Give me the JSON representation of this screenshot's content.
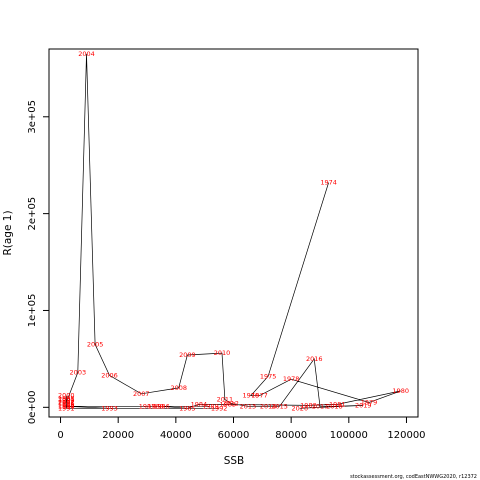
{
  "chart_data": {
    "type": "scatter",
    "xlabel": "SSB",
    "ylabel": "R(age 1)",
    "xlim": [
      -4000,
      124000
    ],
    "ylim": [
      -10000,
      370000
    ],
    "x_ticks": [
      0,
      20000,
      40000,
      60000,
      80000,
      100000,
      120000
    ],
    "x_tick_labels": [
      "0",
      "20000",
      "40000",
      "60000",
      "80000",
      "100000",
      "120000"
    ],
    "y_ticks": [
      0,
      100000,
      200000,
      300000
    ],
    "y_tick_labels": [
      "0e+00",
      "1e+05",
      "2e+05",
      "3e+05"
    ],
    "footnote": "stockassessment.org, codEastNWWG2020, r12372",
    "connect_points": true,
    "point_color": "#ff0000",
    "line_color": "#000000",
    "points": [
      {
        "year": "1974",
        "ssb": 93000,
        "rec": 232000
      },
      {
        "year": "1975",
        "ssb": 72000,
        "rec": 32000
      },
      {
        "year": "1976",
        "ssb": 66000,
        "rec": 12000
      },
      {
        "year": "1977",
        "ssb": 69000,
        "rec": 12000
      },
      {
        "year": "1978",
        "ssb": 80000,
        "rec": 29000
      },
      {
        "year": "1979",
        "ssb": 107000,
        "rec": 5000
      },
      {
        "year": "1980",
        "ssb": 118000,
        "rec": 17000
      },
      {
        "year": "1981",
        "ssb": 96000,
        "rec": 3000
      },
      {
        "year": "1982",
        "ssb": 86000,
        "rec": 2000
      },
      {
        "year": "1983",
        "ssb": 58000,
        "rec": 3000
      },
      {
        "year": "1984",
        "ssb": 48000,
        "rec": 3000
      },
      {
        "year": "1985",
        "ssb": 44000,
        "rec": -1000
      },
      {
        "year": "1986",
        "ssb": 35000,
        "rec": 1000
      },
      {
        "year": "1987",
        "ssb": 30000,
        "rec": 1000
      },
      {
        "year": "1988",
        "ssb": 33000,
        "rec": 1000
      },
      {
        "year": "1989",
        "ssb": 52000,
        "rec": 1000
      },
      {
        "year": "1990",
        "ssb": 2000,
        "rec": 1000
      },
      {
        "year": "1991",
        "ssb": 2000,
        "rec": -1000
      },
      {
        "year": "1992",
        "ssb": 55000,
        "rec": -1000
      },
      {
        "year": "1993",
        "ssb": 17000,
        "rec": -1000
      },
      {
        "year": "1994",
        "ssb": 2000,
        "rec": 1000
      },
      {
        "year": "1995",
        "ssb": 2000,
        "rec": 2000
      },
      {
        "year": "1996",
        "ssb": 2000,
        "rec": 4000
      },
      {
        "year": "1997",
        "ssb": 2000,
        "rec": 5000
      },
      {
        "year": "1998",
        "ssb": 2000,
        "rec": 9000
      },
      {
        "year": "1999",
        "ssb": 2000,
        "rec": 7000
      },
      {
        "year": "2000",
        "ssb": 2000,
        "rec": 12000
      },
      {
        "year": "2001",
        "ssb": 2000,
        "rec": 8000
      },
      {
        "year": "2002",
        "ssb": 2000,
        "rec": 5000
      },
      {
        "year": "2003",
        "ssb": 6000,
        "rec": 36000
      },
      {
        "year": "2004",
        "ssb": 9000,
        "rec": 365000
      },
      {
        "year": "2005",
        "ssb": 12000,
        "rec": 65000
      },
      {
        "year": "2006",
        "ssb": 17000,
        "rec": 33000
      },
      {
        "year": "2007",
        "ssb": 28000,
        "rec": 14000
      },
      {
        "year": "2008",
        "ssb": 41000,
        "rec": 20000
      },
      {
        "year": "2009",
        "ssb": 44000,
        "rec": 54000
      },
      {
        "year": "2010",
        "ssb": 56000,
        "rec": 56000
      },
      {
        "year": "2011",
        "ssb": 57000,
        "rec": 8000
      },
      {
        "year": "2012",
        "ssb": 59000,
        "rec": 4000
      },
      {
        "year": "2013",
        "ssb": 65000,
        "rec": 1000
      },
      {
        "year": "2014",
        "ssb": 72000,
        "rec": 1000
      },
      {
        "year": "2015",
        "ssb": 76000,
        "rec": 1000
      },
      {
        "year": "2016",
        "ssb": 88000,
        "rec": 50000
      },
      {
        "year": "2017",
        "ssb": 90000,
        "rec": 1000
      },
      {
        "year": "2018",
        "ssb": 95000,
        "rec": 1000
      },
      {
        "year": "2019",
        "ssb": 105000,
        "rec": 2000
      },
      {
        "year": "2020",
        "ssb": 83000,
        "rec": -1000
      }
    ]
  }
}
